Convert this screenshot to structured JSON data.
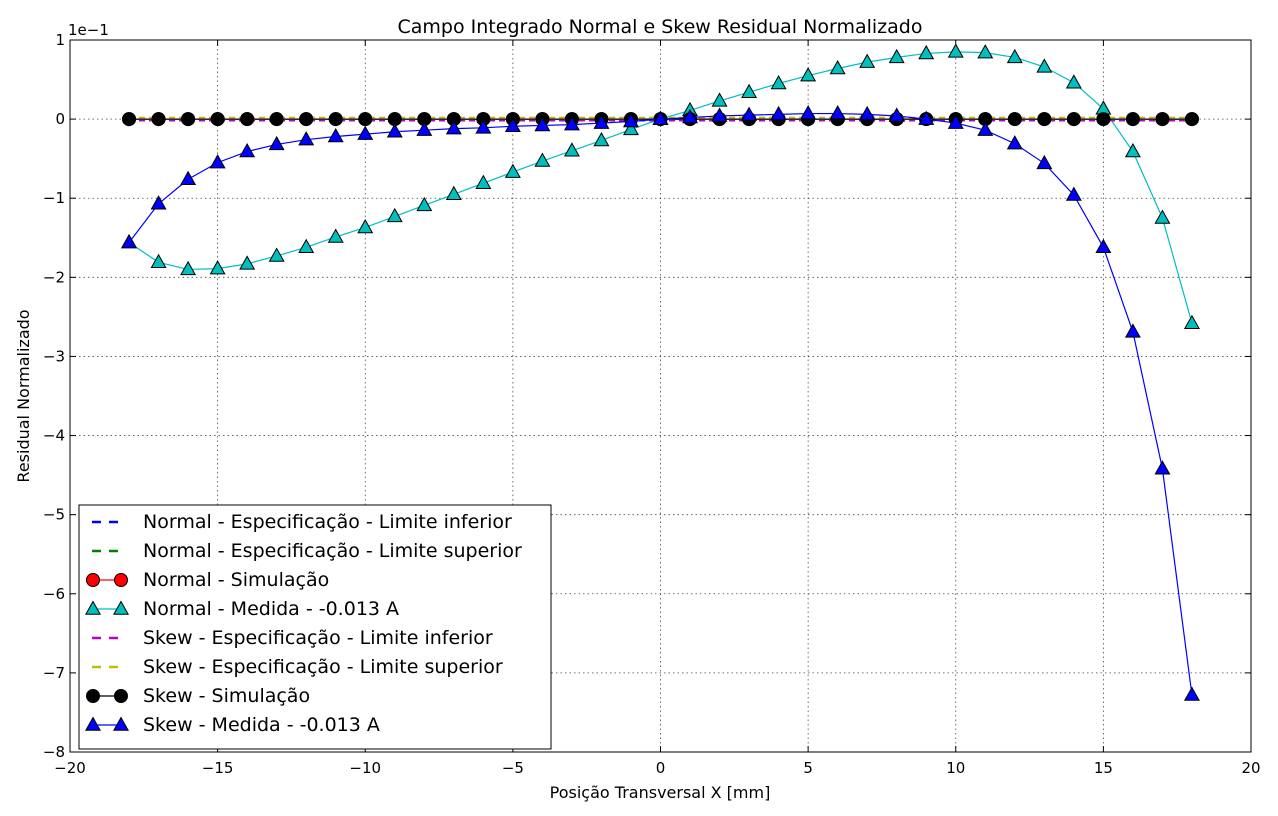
{
  "chart_data": {
    "type": "line",
    "title": "Campo Integrado Normal e Skew Residual Normalizado",
    "xlabel": "Posição Transversal X [mm]",
    "ylabel": "Residual Normalizado",
    "y_offset_text": "1e−1",
    "xlim": [
      -20,
      20
    ],
    "ylim": [
      -8,
      1
    ],
    "x_ticks": [
      -20,
      -15,
      -10,
      -5,
      0,
      5,
      10,
      15,
      20
    ],
    "y_ticks": [
      -8,
      -7,
      -6,
      -5,
      -4,
      -3,
      -2,
      -1,
      0,
      1
    ],
    "x_tick_labels": [
      "−20",
      "−15",
      "−10",
      "−5",
      "0",
      "5",
      "10",
      "15",
      "20"
    ],
    "y_tick_labels": [
      "−8",
      "−7",
      "−6",
      "−5",
      "−4",
      "−3",
      "−2",
      "−1",
      "0",
      "1"
    ],
    "grid": true,
    "legend_position": "lower-left",
    "x": [
      -18,
      -17,
      -16,
      -15,
      -14,
      -13,
      -12,
      -11,
      -10,
      -9,
      -8,
      -7,
      -6,
      -5,
      -4,
      -3,
      -2,
      -1,
      0,
      1,
      2,
      3,
      4,
      5,
      6,
      7,
      8,
      9,
      10,
      11,
      12,
      13,
      14,
      15,
      16,
      17,
      18
    ],
    "series": [
      {
        "name": "Normal - Especificação - Limite inferior",
        "color": "#0000ff",
        "style": "dashed",
        "marker": "none",
        "values": [
          -0.02,
          -0.02,
          -0.02,
          -0.02,
          -0.02,
          -0.02,
          -0.02,
          -0.02,
          -0.02,
          -0.02,
          -0.02,
          -0.02,
          -0.02,
          -0.02,
          -0.02,
          -0.02,
          -0.02,
          -0.02,
          -0.02,
          -0.02,
          -0.02,
          -0.02,
          -0.02,
          -0.02,
          -0.02,
          -0.02,
          -0.02,
          -0.02,
          -0.02,
          -0.02,
          -0.02,
          -0.02,
          -0.02,
          -0.02,
          -0.02,
          -0.02,
          -0.02
        ]
      },
      {
        "name": "Normal - Especificação - Limite superior",
        "color": "#008000",
        "style": "dashed",
        "marker": "none",
        "values": [
          0.02,
          0.02,
          0.02,
          0.02,
          0.02,
          0.02,
          0.02,
          0.02,
          0.02,
          0.02,
          0.02,
          0.02,
          0.02,
          0.02,
          0.02,
          0.02,
          0.02,
          0.02,
          0.02,
          0.02,
          0.02,
          0.02,
          0.02,
          0.02,
          0.02,
          0.02,
          0.02,
          0.02,
          0.02,
          0.02,
          0.02,
          0.02,
          0.02,
          0.02,
          0.02,
          0.02,
          0.02
        ]
      },
      {
        "name": "Normal - Simulação",
        "color": "#ff0000",
        "style": "solid",
        "marker": "circle",
        "values": [
          0,
          0,
          0,
          0,
          0,
          0,
          0,
          0,
          0,
          0,
          0,
          0,
          0,
          0,
          0,
          0,
          0,
          0,
          0,
          0,
          0,
          0,
          0,
          0,
          0,
          0,
          0,
          0,
          0,
          0,
          0,
          0,
          0,
          0,
          0,
          0,
          0
        ]
      },
      {
        "name": "Normal - Medida - -0.013 A",
        "color": "#00bfbf",
        "style": "solid",
        "marker": "triangle",
        "values": [
          -1.56,
          -1.81,
          -1.9,
          -1.89,
          -1.83,
          -1.73,
          -1.62,
          -1.49,
          -1.37,
          -1.23,
          -1.09,
          -0.95,
          -0.81,
          -0.67,
          -0.53,
          -0.4,
          -0.27,
          -0.13,
          0.0,
          0.11,
          0.23,
          0.34,
          0.45,
          0.55,
          0.64,
          0.72,
          0.78,
          0.83,
          0.85,
          0.84,
          0.78,
          0.66,
          0.46,
          0.13,
          -0.41,
          -1.25,
          -2.58
        ]
      },
      {
        "name": "Skew - Especificação - Limite inferior",
        "color": "#bf00bf",
        "style": "dashed",
        "marker": "none",
        "values": [
          -0.02,
          -0.02,
          -0.02,
          -0.02,
          -0.02,
          -0.02,
          -0.02,
          -0.02,
          -0.02,
          -0.02,
          -0.02,
          -0.02,
          -0.02,
          -0.02,
          -0.02,
          -0.02,
          -0.02,
          -0.02,
          -0.02,
          -0.02,
          -0.02,
          -0.02,
          -0.02,
          -0.02,
          -0.02,
          -0.02,
          -0.02,
          -0.02,
          -0.02,
          -0.02,
          -0.02,
          -0.02,
          -0.02,
          -0.02,
          -0.02,
          -0.02,
          -0.02
        ]
      },
      {
        "name": "Skew - Especificação - Limite superior",
        "color": "#bfbf00",
        "style": "dashed",
        "marker": "none",
        "values": [
          0.02,
          0.02,
          0.02,
          0.02,
          0.02,
          0.02,
          0.02,
          0.02,
          0.02,
          0.02,
          0.02,
          0.02,
          0.02,
          0.02,
          0.02,
          0.02,
          0.02,
          0.02,
          0.02,
          0.02,
          0.02,
          0.02,
          0.02,
          0.02,
          0.02,
          0.02,
          0.02,
          0.02,
          0.02,
          0.02,
          0.02,
          0.02,
          0.02,
          0.02,
          0.02,
          0.02,
          0.02
        ]
      },
      {
        "name": "Skew - Simulação",
        "color": "#000000",
        "style": "solid",
        "marker": "circle",
        "values": [
          0,
          0,
          0,
          0,
          0,
          0,
          0,
          0,
          0,
          0,
          0,
          0,
          0,
          0,
          0,
          0,
          0,
          0,
          0,
          0,
          0,
          0,
          0,
          0,
          0,
          0,
          0,
          0,
          0,
          0,
          0,
          0,
          0,
          0,
          0,
          0,
          0
        ]
      },
      {
        "name": "Skew - Medida - -0.013 A",
        "color": "#0000ff",
        "style": "solid",
        "marker": "triangle",
        "values": [
          -1.56,
          -1.07,
          -0.76,
          -0.55,
          -0.41,
          -0.32,
          -0.26,
          -0.22,
          -0.19,
          -0.16,
          -0.14,
          -0.12,
          -0.11,
          -0.09,
          -0.08,
          -0.07,
          -0.05,
          -0.03,
          0.0,
          0.02,
          0.04,
          0.05,
          0.06,
          0.07,
          0.07,
          0.06,
          0.04,
          0.0,
          -0.05,
          -0.14,
          -0.31,
          -0.56,
          -0.96,
          -1.62,
          -2.69,
          -4.42,
          -7.28
        ]
      }
    ]
  }
}
